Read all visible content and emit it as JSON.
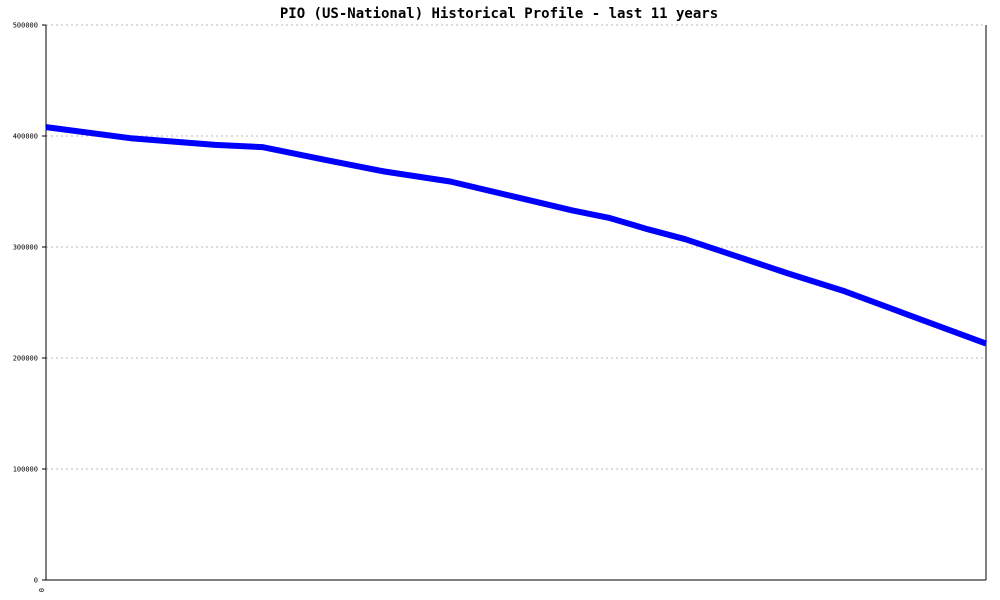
{
  "chart_data": {
    "type": "line",
    "title": "PIO (US-National) Historical Profile - last 11 years",
    "xlabel": "",
    "ylabel": "",
    "x_tick_labels": [
      "0"
    ],
    "y_tick_labels": [
      "0",
      "100000",
      "200000",
      "300000",
      "400000",
      "500000"
    ],
    "ylim": [
      0,
      500000
    ],
    "grid": true,
    "series": [
      {
        "color": "#0000ff",
        "points": [
          {
            "x": 0.0,
            "y": 408000
          },
          {
            "x": 0.09,
            "y": 398000
          },
          {
            "x": 0.18,
            "y": 392000
          },
          {
            "x": 0.23,
            "y": 390000
          },
          {
            "x": 0.3,
            "y": 378000
          },
          {
            "x": 0.36,
            "y": 368000
          },
          {
            "x": 0.43,
            "y": 359000
          },
          {
            "x": 0.5,
            "y": 345000
          },
          {
            "x": 0.56,
            "y": 333000
          },
          {
            "x": 0.6,
            "y": 326000
          },
          {
            "x": 0.64,
            "y": 316000
          },
          {
            "x": 0.68,
            "y": 307000
          },
          {
            "x": 0.73,
            "y": 293000
          },
          {
            "x": 0.79,
            "y": 276000
          },
          {
            "x": 0.85,
            "y": 260000
          },
          {
            "x": 0.92,
            "y": 238000
          },
          {
            "x": 1.0,
            "y": 213000
          }
        ]
      }
    ]
  }
}
